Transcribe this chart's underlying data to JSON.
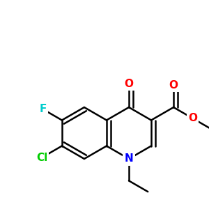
{
  "bg_color": "#ffffff",
  "bond_color": "#000000",
  "bond_width": 1.8,
  "atom_colors": {
    "F": "#00cccc",
    "Cl": "#00cc00",
    "N": "#0000ff",
    "O": "#ff0000",
    "C": "#000000"
  },
  "font_size": 11,
  "fig_size": [
    3.0,
    3.0
  ],
  "dpi": 100,
  "xlim": [
    0,
    300
  ],
  "ylim": [
    0,
    300
  ]
}
